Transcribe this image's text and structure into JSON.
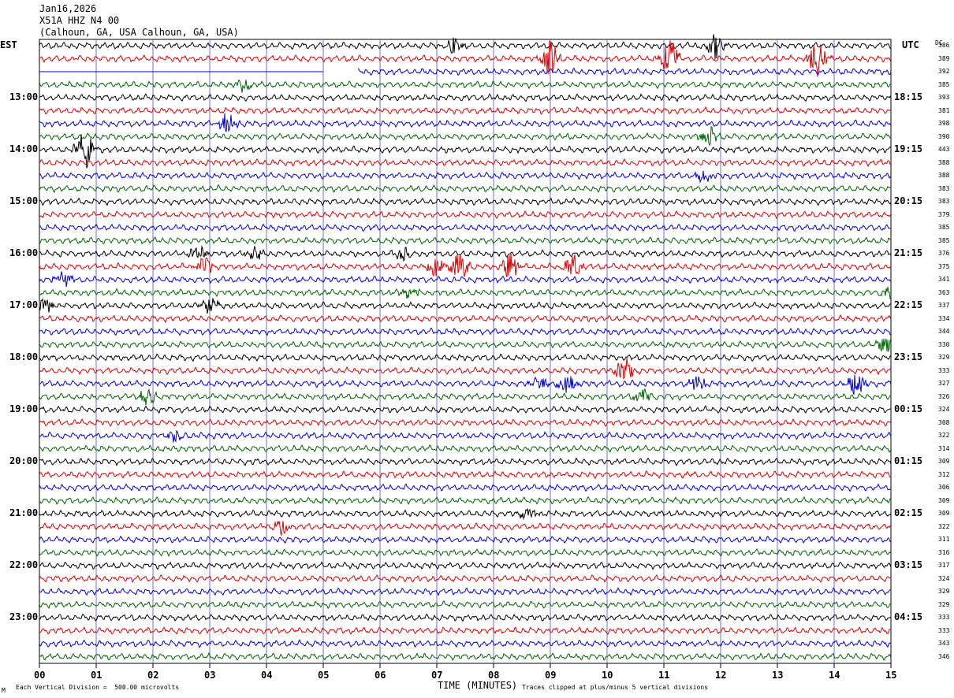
{
  "header": {
    "date": "Jan16,2026",
    "station": "X51A HHZ N4 00",
    "location": "(Calhoun, GA, USA Calhoun, GA, USA)"
  },
  "left_timezone": "EST",
  "right_timezone": "UTC",
  "dc_label": "DC",
  "x_axis": {
    "title": "TIME (MINUTES)",
    "ticks": [
      "00",
      "01",
      "02",
      "03",
      "04",
      "05",
      "06",
      "07",
      "08",
      "09",
      "10",
      "11",
      "12",
      "13",
      "14",
      "15"
    ]
  },
  "footer": {
    "scale_note": "Each Vertical Division =  500.00 microvolts",
    "clip_note": "Traces clipped at plus/minus 5 vertical divisions"
  },
  "colors": {
    "black": "#000000",
    "red": "#e00000",
    "blue": "#0000e0",
    "green": "#006400",
    "grid": "#7070d0"
  },
  "chart_data": {
    "type": "line",
    "title": "",
    "xlabel": "TIME (MINUTES)",
    "xlim": [
      0,
      15
    ],
    "trace_minutes": 15,
    "color_cycle": [
      "black",
      "red",
      "blue",
      "green"
    ],
    "left_hour_labels": [
      {
        "row": 4,
        "text": "13:00"
      },
      {
        "row": 8,
        "text": "14:00"
      },
      {
        "row": 12,
        "text": "15:00"
      },
      {
        "row": 16,
        "text": "16:00"
      },
      {
        "row": 20,
        "text": "17:00"
      },
      {
        "row": 24,
        "text": "18:00"
      },
      {
        "row": 28,
        "text": "19:00"
      },
      {
        "row": 32,
        "text": "20:00"
      },
      {
        "row": 36,
        "text": "21:00"
      },
      {
        "row": 40,
        "text": "22:00"
      },
      {
        "row": 44,
        "text": "23:00"
      }
    ],
    "right_hour_labels": [
      {
        "row": 4,
        "text": "18:15"
      },
      {
        "row": 8,
        "text": "19:15"
      },
      {
        "row": 12,
        "text": "20:15"
      },
      {
        "row": 16,
        "text": "21:15"
      },
      {
        "row": 20,
        "text": "22:15"
      },
      {
        "row": 24,
        "text": "23:15"
      },
      {
        "row": 28,
        "text": "00:15"
      },
      {
        "row": 32,
        "text": "01:15"
      },
      {
        "row": 36,
        "text": "02:15"
      },
      {
        "row": 40,
        "text": "03:15"
      },
      {
        "row": 44,
        "text": "04:15"
      }
    ],
    "dc_values": [
      "386",
      "389",
      "392",
      "385",
      "393",
      "381",
      "398",
      "390",
      "443",
      "388",
      "388",
      "383",
      "383",
      "379",
      "385",
      "385",
      "376",
      "375",
      "341",
      "363",
      "337",
      "334",
      "344",
      "330",
      "329",
      "333",
      "327",
      "326",
      "324",
      "308",
      "322",
      "314",
      "309",
      "312",
      "306",
      "309",
      "309",
      "322",
      "311",
      "316",
      "317",
      "324",
      "329",
      "329",
      "333",
      "333",
      "343",
      "346"
    ],
    "gap": {
      "row": 2,
      "flat_end_minute": 5.0,
      "resume_minute": 5.6
    },
    "events": [
      {
        "row": 0,
        "minute": 7.3,
        "amp": 2.5
      },
      {
        "row": 0,
        "minute": 11.9,
        "amp": 4
      },
      {
        "row": 1,
        "minute": 9.0,
        "amp": 6
      },
      {
        "row": 1,
        "minute": 11.1,
        "amp": 7
      },
      {
        "row": 1,
        "minute": 13.7,
        "amp": 6
      },
      {
        "row": 3,
        "minute": 3.6,
        "amp": 2
      },
      {
        "row": 6,
        "minute": 3.3,
        "amp": 3
      },
      {
        "row": 7,
        "minute": 11.8,
        "amp": 3
      },
      {
        "row": 8,
        "minute": 0.8,
        "amp": 6
      },
      {
        "row": 10,
        "minute": 11.7,
        "amp": 2
      },
      {
        "row": 16,
        "minute": 2.8,
        "amp": 2.5
      },
      {
        "row": 16,
        "minute": 3.8,
        "amp": 2.5
      },
      {
        "row": 16,
        "minute": 6.4,
        "amp": 2.5
      },
      {
        "row": 17,
        "minute": 2.9,
        "amp": 3
      },
      {
        "row": 17,
        "minute": 7.0,
        "amp": 3.5
      },
      {
        "row": 17,
        "minute": 7.4,
        "amp": 5
      },
      {
        "row": 17,
        "minute": 8.3,
        "amp": 4
      },
      {
        "row": 17,
        "minute": 9.4,
        "amp": 3.5
      },
      {
        "row": 18,
        "minute": 0.4,
        "amp": 2.5
      },
      {
        "row": 19,
        "minute": 6.5,
        "amp": 2.5
      },
      {
        "row": 19,
        "minute": 15.0,
        "amp": 3
      },
      {
        "row": 20,
        "minute": 0.1,
        "amp": 2.5
      },
      {
        "row": 20,
        "minute": 3.0,
        "amp": 2.5
      },
      {
        "row": 23,
        "minute": 14.9,
        "amp": 2.5
      },
      {
        "row": 25,
        "minute": 10.3,
        "amp": 4
      },
      {
        "row": 26,
        "minute": 8.8,
        "amp": 2.5
      },
      {
        "row": 26,
        "minute": 9.3,
        "amp": 3
      },
      {
        "row": 26,
        "minute": 11.6,
        "amp": 2.5
      },
      {
        "row": 26,
        "minute": 14.4,
        "amp": 4
      },
      {
        "row": 27,
        "minute": 1.9,
        "amp": 2.5
      },
      {
        "row": 27,
        "minute": 10.6,
        "amp": 2.5
      },
      {
        "row": 30,
        "minute": 2.4,
        "amp": 2
      },
      {
        "row": 36,
        "minute": 8.6,
        "amp": 2
      },
      {
        "row": 37,
        "minute": 4.3,
        "amp": 3
      }
    ]
  }
}
